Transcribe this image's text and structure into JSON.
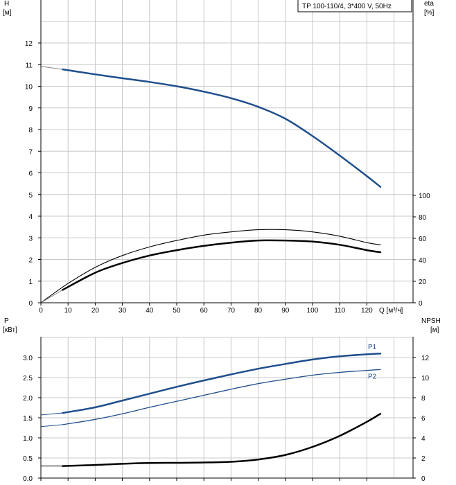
{
  "chart_data": [
    {
      "type": "line",
      "legend": "TP 100-110/4, 3*400 V, 50Hz",
      "xlabel": "Q [м³/ч]",
      "xlim": [
        0,
        137
      ],
      "xticks": [
        0,
        10,
        20,
        30,
        40,
        50,
        60,
        70,
        80,
        90,
        100,
        110,
        120
      ],
      "left_axis": {
        "label_top": "H",
        "label_unit": "[м]",
        "ylim": [
          0,
          13
        ],
        "ticks": [
          0,
          1,
          2,
          3,
          4,
          5,
          6,
          7,
          8,
          9,
          10,
          11,
          12
        ]
      },
      "right_axis": {
        "label_top": "eta",
        "label_unit": "[%]",
        "ylim": [
          0,
          100
        ],
        "ticks": [
          0,
          20,
          40,
          60,
          80,
          100
        ]
      },
      "grid": true,
      "series": [
        {
          "axis": "left",
          "color": "#1f4e8c",
          "width": 2.5,
          "extension": {
            "x": [
              0,
              8
            ],
            "y": [
              10.92,
              10.78
            ]
          },
          "x": [
            8,
            20,
            30,
            40,
            50,
            60,
            70,
            80,
            90,
            100,
            110,
            120,
            125
          ],
          "y": [
            10.78,
            10.55,
            10.37,
            10.2,
            10.0,
            9.75,
            9.45,
            9.05,
            8.5,
            7.7,
            6.8,
            5.85,
            5.35
          ]
        },
        {
          "axis": "right",
          "color": "#000000",
          "width": 1.1,
          "x": [
            0,
            10,
            20,
            30,
            40,
            50,
            60,
            70,
            80,
            90,
            100,
            110,
            120,
            125
          ],
          "y": [
            0,
            18,
            33,
            44,
            52,
            58,
            63,
            66,
            68,
            68,
            66,
            62,
            56,
            54
          ]
        },
        {
          "axis": "right",
          "color": "#000000",
          "width": 2.5,
          "extension": {
            "x": [
              0,
              8
            ],
            "y": [
              0,
              12
            ]
          },
          "x": [
            8,
            20,
            30,
            40,
            50,
            60,
            70,
            80,
            90,
            100,
            110,
            120,
            125
          ],
          "y": [
            12,
            28,
            37,
            44,
            49,
            53,
            56,
            58,
            58,
            57,
            54,
            49,
            47
          ]
        }
      ]
    },
    {
      "type": "line",
      "left_axis": {
        "label_top": "P",
        "label_unit": "[кВт]",
        "ylim": [
          0,
          3.6
        ],
        "ticks": [
          "0.0",
          "0.5",
          "1.0",
          "1.5",
          "2.0",
          "2.5",
          "3.0"
        ]
      },
      "right_axis": {
        "label_top": "NPSH",
        "label_unit": "[м]",
        "ylim": [
          0,
          14.4
        ],
        "ticks": [
          0,
          2,
          4,
          6,
          8,
          10,
          12
        ]
      },
      "xlim": [
        0,
        137
      ],
      "grid": true,
      "series": [
        {
          "name": "P1",
          "axis": "left",
          "color": "#1f4e8c",
          "width": 2.5,
          "extension": {
            "x": [
              0,
              8
            ],
            "y": [
              1.57,
              1.62
            ]
          },
          "x": [
            8,
            20,
            30,
            40,
            50,
            60,
            70,
            80,
            90,
            100,
            110,
            120,
            125
          ],
          "y": [
            1.62,
            1.76,
            1.93,
            2.1,
            2.27,
            2.43,
            2.58,
            2.72,
            2.84,
            2.95,
            3.03,
            3.08,
            3.1
          ]
        },
        {
          "name": "P2",
          "axis": "left",
          "color": "#1f4e8c",
          "width": 1.3,
          "extension": {
            "x": [
              0,
              8
            ],
            "y": [
              1.28,
              1.33
            ]
          },
          "x": [
            8,
            20,
            30,
            40,
            50,
            60,
            70,
            80,
            90,
            100,
            110,
            120,
            125
          ],
          "y": [
            1.33,
            1.46,
            1.6,
            1.76,
            1.91,
            2.06,
            2.21,
            2.35,
            2.46,
            2.56,
            2.63,
            2.68,
            2.7
          ]
        },
        {
          "axis": "right",
          "color": "#000000",
          "width": 2.5,
          "extension": {
            "x": [
              0,
              8
            ],
            "y": [
              1.2,
              1.2
            ]
          },
          "x": [
            8,
            20,
            30,
            40,
            50,
            60,
            70,
            80,
            90,
            100,
            110,
            120,
            125
          ],
          "y": [
            1.2,
            1.3,
            1.42,
            1.5,
            1.52,
            1.55,
            1.62,
            1.85,
            2.3,
            3.1,
            4.2,
            5.6,
            6.4
          ]
        }
      ]
    }
  ]
}
